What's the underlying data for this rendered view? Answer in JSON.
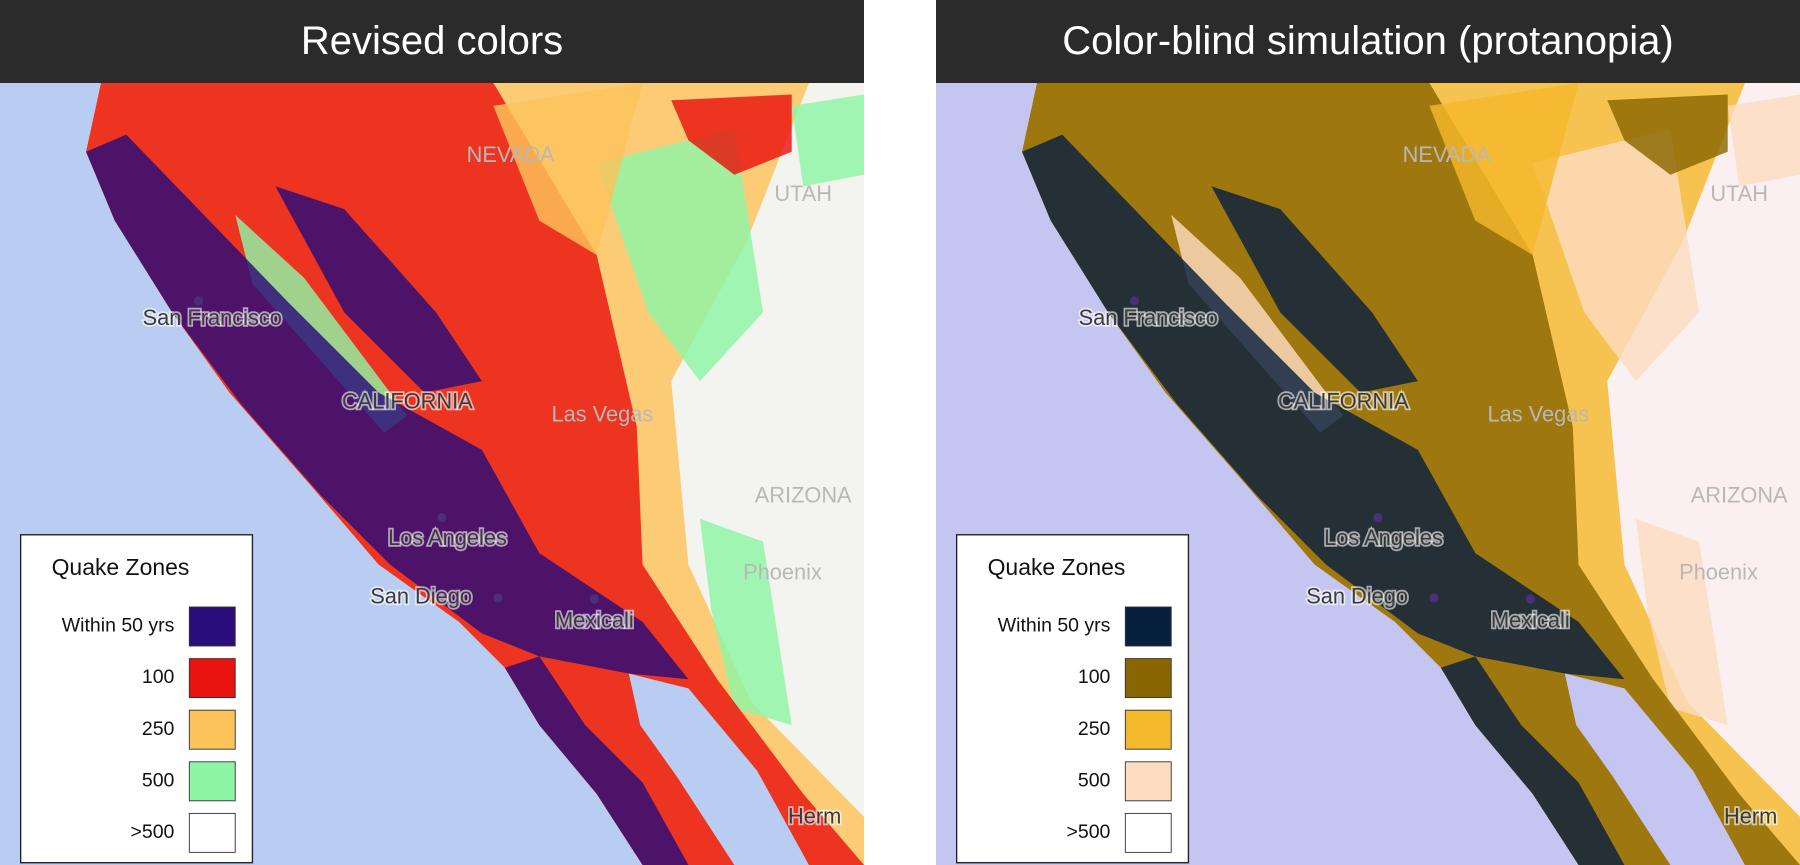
{
  "panels": [
    {
      "title": "Revised colors",
      "legend": {
        "title": "Quake Zones",
        "items": [
          {
            "label": "Within 50 yrs",
            "color": "#2a0c7a"
          },
          {
            "label": "100",
            "color": "#e8120e"
          },
          {
            "label": "250",
            "color": "#fcc35a"
          },
          {
            "label": "500",
            "color": "#8ff5a6"
          },
          {
            "label": ">500",
            "color": "#ffffff"
          }
        ]
      }
    },
    {
      "title": "Color-blind simulation (protanopia)",
      "legend": {
        "title": "Quake Zones",
        "items": [
          {
            "label": "Within 50 yrs",
            "color": "#08203f"
          },
          {
            "label": "100",
            "color": "#8a6600"
          },
          {
            "label": "250",
            "color": "#f4b82c"
          },
          {
            "label": "500",
            "color": "#fddcc0"
          },
          {
            "label": ">500",
            "color": "#ffffff"
          }
        ]
      }
    }
  ],
  "map_labels": [
    "San Francisco",
    "CALIFORNIA",
    "Las Vegas",
    "NEVADA",
    "UTAH",
    "ARIZONA",
    "Phoenix",
    "Los Angeles",
    "San Diego",
    "Mexicali",
    "Herm"
  ]
}
